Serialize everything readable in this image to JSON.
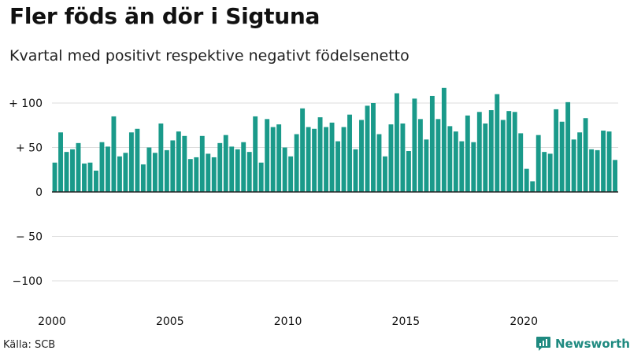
{
  "title": "Fler föds än dör i Sigtuna",
  "subtitle": "Kvartal med positivt respektive negativt födelsenetto",
  "source": "Källa: SCB",
  "brand": {
    "name": "Newsworthy",
    "icon": "newsworthy-logo-icon",
    "color": "#1f8a80"
  },
  "colors": {
    "bar": "#1a9a8a",
    "grid": "#dddddd",
    "zero_line": "#222222"
  },
  "chart_data": {
    "type": "bar",
    "title": "Fler föds än dör i Sigtuna",
    "subtitle": "Kvartal med positivt respektive negativt födelsenetto",
    "x_start": 2000,
    "x_step": 0.25,
    "xlim": [
      2000,
      2024
    ],
    "ylim": [
      -120,
      115
    ],
    "x_ticks": [
      2000,
      2005,
      2010,
      2015,
      2020
    ],
    "x_tick_labels": [
      "2000",
      "2005",
      "2010",
      "2015",
      "2020"
    ],
    "y_ticks": [
      100,
      50,
      0,
      -50,
      -100
    ],
    "y_tick_labels": [
      "+ 100",
      "+  50",
      "0",
      "− 50",
      "−100"
    ],
    "grid": true,
    "values": [
      33,
      67,
      45,
      48,
      55,
      32,
      33,
      24,
      56,
      51,
      85,
      40,
      44,
      67,
      71,
      31,
      50,
      44,
      77,
      47,
      58,
      68,
      63,
      37,
      39,
      63,
      43,
      39,
      55,
      64,
      51,
      48,
      56,
      45,
      85,
      33,
      82,
      73,
      76,
      50,
      40,
      65,
      94,
      73,
      71,
      84,
      73,
      78,
      57,
      73,
      87,
      48,
      81,
      97,
      100,
      65,
      40,
      76,
      111,
      77,
      46,
      105,
      82,
      59,
      108,
      82,
      117,
      74,
      68,
      57,
      86,
      56,
      90,
      77,
      92,
      110,
      81,
      91,
      90,
      66,
      26,
      12,
      64,
      45,
      43,
      93,
      79,
      101,
      59,
      67,
      83,
      48,
      47,
      69,
      68,
      36
    ]
  }
}
